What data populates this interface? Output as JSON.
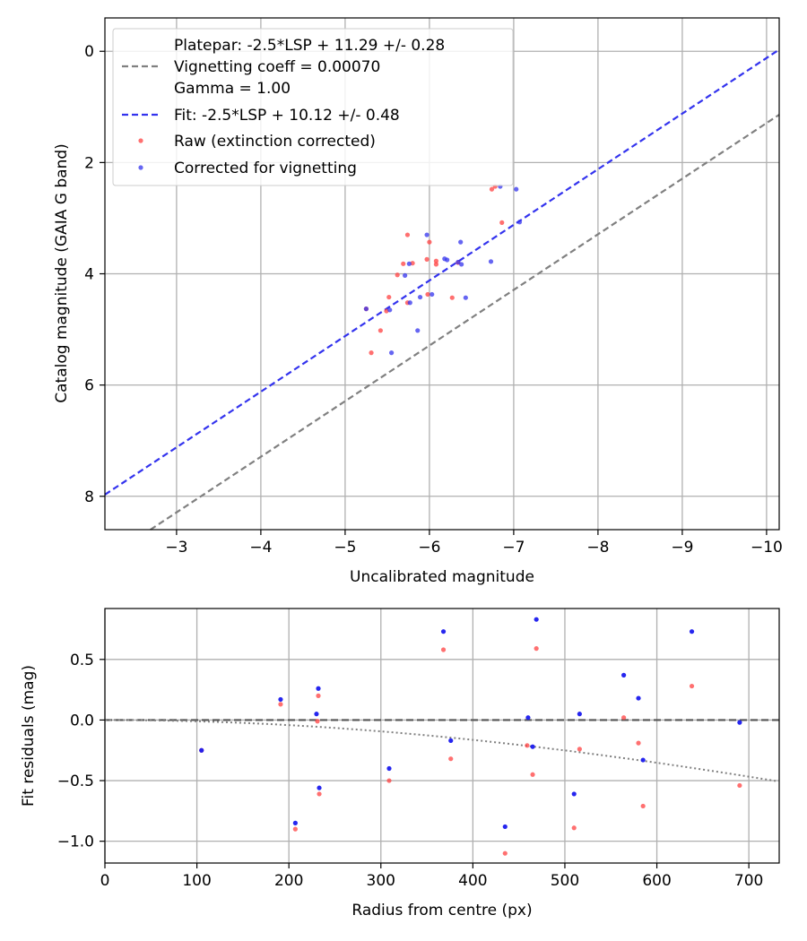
{
  "chart_data": [
    {
      "type": "scatter",
      "xlabel": "Uncalibrated magnitude",
      "ylabel": "Catalog magnitude (GAIA G band)",
      "xlim": [
        -2.15,
        -10.15
      ],
      "ylim": [
        8.6,
        -0.6
      ],
      "x_ticks": [
        -3,
        -4,
        -5,
        -6,
        -7,
        -8,
        -9,
        -10
      ],
      "y_ticks": [
        0,
        2,
        4,
        6,
        8
      ],
      "grid": true,
      "legend_position": "top-left",
      "legend": {
        "platepar_label": "Platepar: -2.5*LSP + 11.29 +/- 0.28",
        "vignetting_label": "Vignetting coeff = 0.00070",
        "gamma_label": "Gamma = 1.00",
        "fit_label": "Fit: -2.5*LSP + 10.12 +/- 0.48",
        "raw_label": "Raw (extinction corrected)",
        "corrected_label": "Corrected for vignetting"
      },
      "lines": [
        {
          "name": "platepar",
          "slope": 1,
          "intercept": 11.29,
          "color": "#808080",
          "style": "dashed"
        },
        {
          "name": "fit",
          "slope": 1,
          "intercept": 10.12,
          "color": "#3333ee",
          "style": "dashed"
        }
      ],
      "series": [
        {
          "name": "Raw (extinction corrected)",
          "color": "#ff4040",
          "points": [
            [
              -5.25,
              4.63
            ],
            [
              -5.31,
              5.42
            ],
            [
              -5.42,
              5.02
            ],
            [
              -5.49,
              4.67
            ],
            [
              -5.52,
              4.42
            ],
            [
              -5.62,
              4.02
            ],
            [
              -5.69,
              3.82
            ],
            [
              -5.74,
              3.3
            ],
            [
              -5.74,
              4.52
            ],
            [
              -5.8,
              3.81
            ],
            [
              -5.97,
              3.74
            ],
            [
              -5.98,
              4.37
            ],
            [
              -6.0,
              3.43
            ],
            [
              -6.08,
              3.77
            ],
            [
              -6.08,
              3.83
            ],
            [
              -6.27,
              4.43
            ],
            [
              -6.34,
              3.8
            ],
            [
              -6.74,
              2.48
            ],
            [
              -6.78,
              2.43
            ],
            [
              -6.86,
              3.08
            ]
          ]
        },
        {
          "name": "Corrected for vignetting",
          "color": "#3333ee",
          "points": [
            [
              -5.25,
              4.63
            ],
            [
              -5.53,
              4.65
            ],
            [
              -5.55,
              5.42
            ],
            [
              -5.71,
              4.03
            ],
            [
              -5.77,
              4.52
            ],
            [
              -5.76,
              3.82
            ],
            [
              -5.86,
              5.02
            ],
            [
              -5.89,
              4.42
            ],
            [
              -5.97,
              3.3
            ],
            [
              -6.03,
              4.37
            ],
            [
              -6.18,
              3.73
            ],
            [
              -6.21,
              3.75
            ],
            [
              -6.34,
              3.79
            ],
            [
              -6.37,
              3.43
            ],
            [
              -6.38,
              3.83
            ],
            [
              -6.43,
              4.43
            ],
            [
              -6.73,
              3.78
            ],
            [
              -6.84,
              2.43
            ],
            [
              -7.03,
              2.48
            ],
            [
              -7.07,
              3.07
            ]
          ]
        }
      ]
    },
    {
      "type": "scatter",
      "xlabel": "Radius from centre (px)",
      "ylabel": "Fit residuals (mag)",
      "xlim": [
        0,
        733
      ],
      "ylim": [
        -1.18,
        0.92
      ],
      "x_ticks": [
        0,
        100,
        200,
        300,
        400,
        500,
        600,
        700
      ],
      "y_ticks": [
        -1.0,
        -0.5,
        0.0,
        0.5
      ],
      "grid": true,
      "lines": [
        {
          "name": "zero",
          "value": 0.0,
          "color": "#555555",
          "style": "dashed"
        },
        {
          "name": "vignetting model",
          "coeff": 0.0007,
          "color": "#808080",
          "style": "dotted"
        }
      ],
      "series": [
        {
          "name": "Raw (extinction corrected)",
          "color": "#ff4040",
          "points": [
            [
              105,
              -0.25
            ],
            [
              191,
              0.13
            ],
            [
              207,
              -0.9
            ],
            [
              231,
              -0.01
            ],
            [
              232,
              0.2
            ],
            [
              233,
              -0.61
            ],
            [
              309,
              -0.5
            ],
            [
              368,
              0.58
            ],
            [
              376,
              -0.32
            ],
            [
              435,
              -1.1
            ],
            [
              459,
              -0.21
            ],
            [
              465,
              -0.45
            ],
            [
              469,
              0.59
            ],
            [
              510,
              -0.89
            ],
            [
              516,
              -0.24
            ],
            [
              564,
              0.02
            ],
            [
              580,
              -0.19
            ],
            [
              585,
              -0.71
            ],
            [
              638,
              0.28
            ],
            [
              690,
              -0.54
            ]
          ]
        },
        {
          "name": "Corrected for vignetting",
          "color": "#1a1aee",
          "points": [
            [
              105,
              -0.25
            ],
            [
              191,
              0.17
            ],
            [
              207,
              -0.85
            ],
            [
              230,
              0.05
            ],
            [
              232,
              0.26
            ],
            [
              233,
              -0.56
            ],
            [
              309,
              -0.4
            ],
            [
              368,
              0.73
            ],
            [
              376,
              -0.17
            ],
            [
              435,
              -0.88
            ],
            [
              460,
              0.02
            ],
            [
              465,
              -0.22
            ],
            [
              469,
              0.83
            ],
            [
              510,
              -0.61
            ],
            [
              516,
              0.05
            ],
            [
              564,
              0.37
            ],
            [
              580,
              0.18
            ],
            [
              585,
              -0.33
            ],
            [
              638,
              0.73
            ],
            [
              690,
              -0.02
            ]
          ]
        }
      ]
    }
  ]
}
